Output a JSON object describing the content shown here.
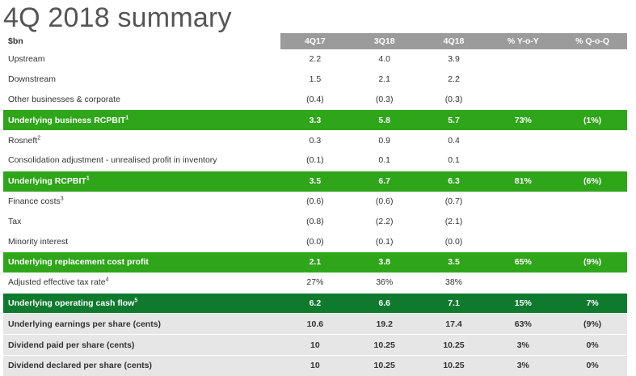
{
  "title": "4Q 2018 summary",
  "columns": [
    "$bn",
    "4Q17",
    "3Q18",
    "4Q18",
    "% Y-o-Y",
    "% Q-o-Q"
  ],
  "rows": [
    {
      "style": "normal",
      "label": "Upstream",
      "sup": "",
      "values": [
        "2.2",
        "4.0",
        "3.9",
        "",
        ""
      ]
    },
    {
      "style": "normal",
      "label": "Downstream",
      "sup": "",
      "values": [
        "1.5",
        "2.1",
        "2.2",
        "",
        ""
      ]
    },
    {
      "style": "normal",
      "label": "Other businesses & corporate",
      "sup": "",
      "values": [
        "(0.4)",
        "(0.3)",
        "(0.3)",
        "",
        ""
      ]
    },
    {
      "style": "green",
      "label": "Underlying business RCPBIT",
      "sup": "1",
      "values": [
        "3.3",
        "5.8",
        "5.7",
        "73%",
        "(1%)"
      ]
    },
    {
      "style": "normal",
      "label": "Rosneft",
      "sup": "2",
      "values": [
        "0.3",
        "0.9",
        "0.4",
        "",
        ""
      ]
    },
    {
      "style": "normal",
      "label": "Consolidation adjustment - unrealised profit in inventory",
      "sup": "",
      "values": [
        "(0.1)",
        "0.1",
        "0.1",
        "",
        ""
      ]
    },
    {
      "style": "green",
      "label": "Underlying RCPBIT",
      "sup": "1",
      "values": [
        "3.5",
        "6.7",
        "6.3",
        "81%",
        "(6%)"
      ]
    },
    {
      "style": "normal",
      "label": "Finance costs",
      "sup": "3",
      "values": [
        "(0.6)",
        "(0.6)",
        "(0.7)",
        "",
        ""
      ]
    },
    {
      "style": "normal",
      "label": "Tax",
      "sup": "",
      "values": [
        "(0.8)",
        "(2.2)",
        "(2.1)",
        "",
        ""
      ]
    },
    {
      "style": "normal",
      "label": "Minority interest",
      "sup": "",
      "values": [
        "(0.0)",
        "(0.1)",
        "(0.0)",
        "",
        ""
      ]
    },
    {
      "style": "green",
      "label": "Underlying replacement cost profit",
      "sup": "",
      "values": [
        "2.1",
        "3.8",
        "3.5",
        "65%",
        "(9%)"
      ]
    },
    {
      "style": "normal",
      "label": "Adjusted effective tax rate",
      "sup": "4",
      "values": [
        "27%",
        "36%",
        "38%",
        "",
        ""
      ]
    },
    {
      "style": "dkgreen",
      "label": "Underlying operating cash flow",
      "sup": "5",
      "values": [
        "6.2",
        "6.6",
        "7.1",
        "15%",
        "7%"
      ]
    },
    {
      "style": "grey",
      "label": "Underlying earnings per share (cents)",
      "sup": "",
      "values": [
        "10.6",
        "19.2",
        "17.4",
        "63%",
        "(9%)"
      ]
    },
    {
      "style": "grey",
      "label": "Dividend paid per share (cents)",
      "sup": "",
      "values": [
        "10",
        "10.25",
        "10.25",
        "3%",
        "0%"
      ]
    },
    {
      "style": "grey",
      "label": "Dividend declared per share (cents)",
      "sup": "",
      "values": [
        "10",
        "10.25",
        "10.25",
        "3%",
        "0%"
      ]
    }
  ]
}
